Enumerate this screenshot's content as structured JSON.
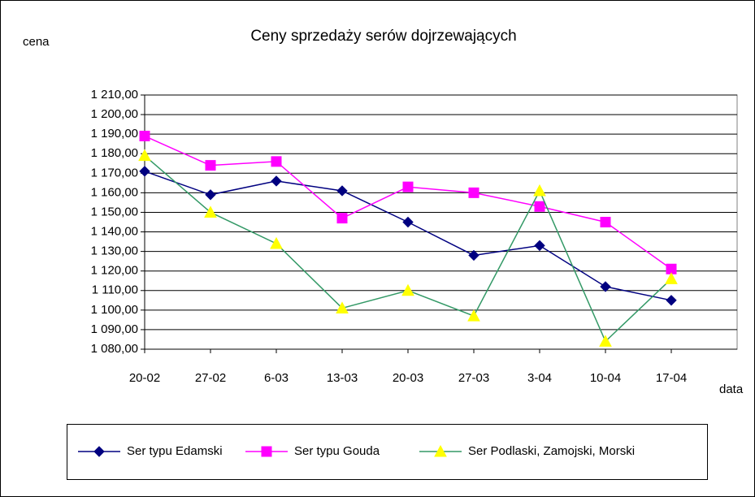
{
  "chart_data": {
    "type": "line",
    "title": "Ceny sprzedaży serów dojrzewających",
    "y_label": "cena",
    "x_label": "data",
    "categories": [
      "20-02",
      "27-02",
      "6-03",
      "13-03",
      "20-03",
      "27-03",
      "3-04",
      "10-04",
      "17-04"
    ],
    "series": [
      {
        "name": "Ser typu Edamski",
        "color": "#000080",
        "marker": "diamond",
        "marker_color": "#000080",
        "values": [
          1171,
          1159,
          1166,
          1161,
          1145,
          1128,
          1133,
          1112,
          1105
        ]
      },
      {
        "name": "Ser typu Gouda",
        "color": "#ff00ff",
        "marker": "square",
        "marker_color": "#ff00ff",
        "values": [
          1189,
          1174,
          1176,
          1147,
          1163,
          1160,
          1153,
          1145,
          1121
        ]
      },
      {
        "name": "Ser Podlaski, Zamojski, Morski",
        "color": "#339966",
        "marker": "triangle",
        "marker_color": "#ffff00",
        "values": [
          1179,
          1150,
          1134,
          1101,
          1110,
          1097,
          1161,
          1084,
          1116
        ]
      }
    ],
    "ylim": [
      1080,
      1210
    ],
    "yticks": [
      {
        "value": 1080,
        "label": "1 080,00"
      },
      {
        "value": 1090,
        "label": "1 090,00"
      },
      {
        "value": 1100,
        "label": "1 100,00"
      },
      {
        "value": 1110,
        "label": "1 110,00"
      },
      {
        "value": 1120,
        "label": "1 120,00"
      },
      {
        "value": 1130,
        "label": "1 130,00"
      },
      {
        "value": 1140,
        "label": "1 140,00"
      },
      {
        "value": 1150,
        "label": "1 150,00"
      },
      {
        "value": 1160,
        "label": "1 160,00"
      },
      {
        "value": 1170,
        "label": "1 170,00"
      },
      {
        "value": 1180,
        "label": "1 180,00"
      },
      {
        "value": 1190,
        "label": "1 190,00"
      },
      {
        "value": 1200,
        "label": "1 200,00"
      },
      {
        "value": 1210,
        "label": "1 210,00"
      }
    ],
    "grid": true,
    "legend": "bottom"
  }
}
